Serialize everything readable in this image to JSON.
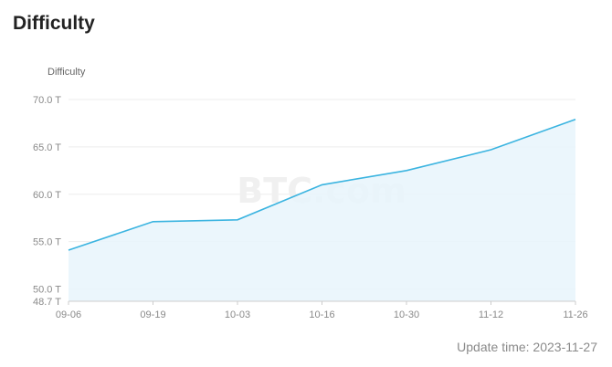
{
  "page": {
    "title": "Difficulty",
    "update_label": "Update time: 2023-11-27",
    "watermark": "BTC.com"
  },
  "colors": {
    "line": "#3bb4e0",
    "area": "#e8f5fc",
    "grid": "#eeeeee",
    "axis_text": "#8a8a8a"
  },
  "chart_data": {
    "type": "area",
    "title": "",
    "ylabel": "Difficulty",
    "xlabel": "",
    "ylim": [
      48.7,
      70.0
    ],
    "yticks": [
      48.7,
      50.0,
      55.0,
      60.0,
      65.0,
      70.0
    ],
    "ytick_labels": [
      "48.7 T",
      "50.0 T",
      "55.0 T",
      "60.0 T",
      "65.0 T",
      "70.0 T"
    ],
    "categories": [
      "09-06",
      "09-19",
      "10-03",
      "10-16",
      "10-30",
      "11-12",
      "11-26"
    ],
    "series": [
      {
        "values": [
          54.1,
          57.1,
          57.3,
          61.0,
          62.5,
          64.7,
          67.9
        ]
      }
    ],
    "grid": true
  }
}
